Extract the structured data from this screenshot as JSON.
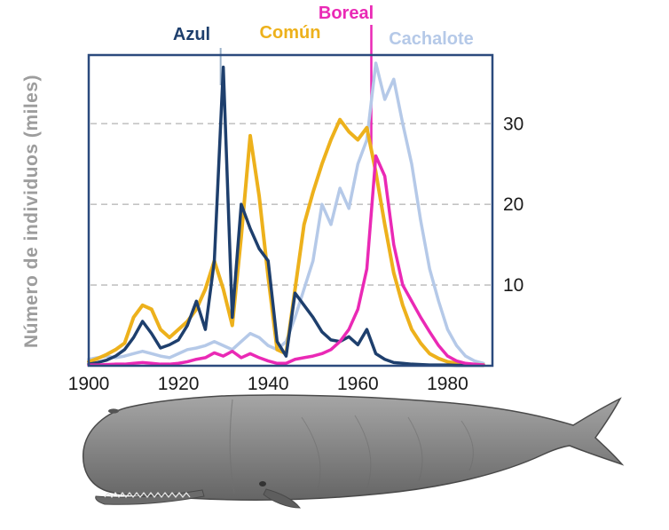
{
  "figure": {
    "y_axis_title": "Número de individuos (miles)"
  },
  "chart_data": {
    "type": "line",
    "title": "",
    "xlabel": "",
    "ylabel": "Número de individuos (miles)",
    "x_start": 1900,
    "x_step": 2,
    "xlim": [
      1900,
      1990
    ],
    "ylim": [
      0,
      38.5
    ],
    "xticks": [
      1900,
      1920,
      1940,
      1960,
      1980
    ],
    "yticks": [
      10,
      20,
      30
    ],
    "grid": "horizontal-dashed",
    "legend_position": "top",
    "series": [
      {
        "name": "Azul",
        "color": "#1e3f6d",
        "values": [
          0.2,
          0.4,
          0.7,
          1.2,
          2.0,
          3.5,
          5.5,
          4.0,
          2.2,
          2.6,
          3.2,
          5.0,
          8.0,
          4.5,
          13.0,
          37.0,
          6.0,
          20.0,
          17.0,
          14.5,
          13.0,
          3.0,
          1.2,
          9.0,
          7.5,
          6.0,
          4.2,
          3.2,
          3.0,
          3.6,
          2.6,
          4.5,
          1.5,
          0.8,
          0.4,
          0.3,
          0.2,
          0.15,
          0.1,
          0.1,
          0.1,
          0.05,
          0.05,
          0.05,
          0.05
        ]
      },
      {
        "name": "Común",
        "color": "#edb11c",
        "values": [
          0.5,
          0.9,
          1.4,
          2.0,
          2.8,
          6.0,
          7.5,
          7.0,
          4.5,
          3.5,
          4.5,
          5.5,
          7.0,
          9.5,
          13.0,
          9.5,
          5.0,
          16.0,
          28.5,
          21.0,
          11.0,
          2.0,
          1.5,
          9.5,
          17.5,
          21.5,
          25.0,
          28.0,
          30.5,
          29.0,
          28.0,
          29.5,
          24.0,
          17.5,
          11.5,
          7.5,
          4.5,
          2.8,
          1.5,
          0.9,
          0.5,
          0.3,
          0.2,
          0.15,
          0.1
        ]
      },
      {
        "name": "Boreal",
        "color": "#ea29b5",
        "values": [
          0.1,
          0.1,
          0.15,
          0.2,
          0.2,
          0.3,
          0.4,
          0.3,
          0.2,
          0.2,
          0.3,
          0.5,
          0.8,
          1.0,
          1.6,
          1.2,
          1.8,
          1.0,
          1.5,
          1.0,
          0.6,
          0.3,
          0.3,
          0.8,
          1.0,
          1.2,
          1.5,
          2.0,
          3.0,
          4.5,
          7.0,
          12.0,
          26.0,
          23.5,
          15.0,
          10.0,
          8.0,
          6.0,
          4.2,
          2.5,
          1.2,
          0.6,
          0.3,
          0.2,
          0.1
        ]
      },
      {
        "name": "Cachalote",
        "color": "#b5c9e8",
        "values": [
          0.8,
          1.0,
          1.2,
          1.0,
          1.2,
          1.5,
          1.8,
          1.5,
          1.2,
          1.0,
          1.5,
          2.0,
          2.2,
          2.5,
          3.0,
          2.5,
          2.0,
          3.0,
          4.0,
          3.5,
          2.5,
          2.0,
          3.0,
          6.0,
          9.5,
          13.0,
          20.0,
          17.5,
          22.0,
          19.5,
          25.0,
          28.0,
          37.5,
          33.0,
          35.5,
          30.0,
          25.0,
          18.0,
          12.0,
          8.0,
          4.5,
          2.5,
          1.2,
          0.6,
          0.3
        ]
      }
    ],
    "annotations": [
      {
        "label": "Azul",
        "points_to_year": 1930
      },
      {
        "label": "Boreal",
        "points_to_year": 1963
      }
    ]
  },
  "illustration": {
    "subject": "cachalote (sperm whale) engraving"
  }
}
